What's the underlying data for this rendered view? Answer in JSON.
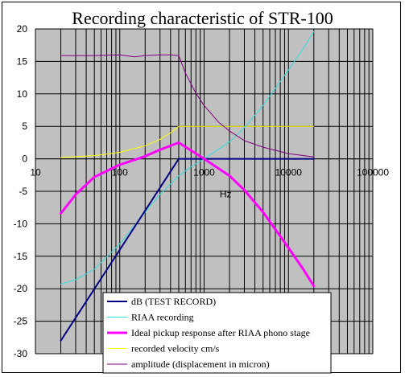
{
  "chart_data": {
    "type": "line",
    "title": "Recording characteristic of STR-100",
    "xlabel": "Hz",
    "ylabel": "",
    "x_scale": "log",
    "xlim": [
      10,
      100000
    ],
    "ylim": [
      -30,
      20
    ],
    "x_ticks": [
      "10",
      "100",
      "1000",
      "10000",
      "100000"
    ],
    "y_ticks": [
      "-30",
      "-25",
      "-20",
      "-15",
      "-10",
      "-5",
      "0",
      "5",
      "10",
      "15",
      "20"
    ],
    "grid": true,
    "plot_background": "#c0c0c0",
    "legend_position": "bottom-center",
    "series": [
      {
        "name": "dB (TEST RECORD)",
        "color": "#000080",
        "width": 2,
        "x": [
          20,
          500,
          1000,
          20000
        ],
        "y": [
          -28,
          0,
          0,
          0
        ]
      },
      {
        "name": "RIAA recording",
        "color": "#33dddd",
        "width": 1,
        "x": [
          20,
          30,
          50,
          100,
          200,
          300,
          500,
          700,
          1000,
          2000,
          3000,
          5000,
          10000,
          15000,
          20000
        ],
        "y": [
          -19.3,
          -18.6,
          -17,
          -13.1,
          -8.2,
          -5.5,
          -2.6,
          -1.2,
          0,
          2.6,
          4.8,
          8.2,
          13.7,
          17,
          19.6
        ]
      },
      {
        "name": "Ideal pickup response after RIAA phono stage",
        "color": "#ff00ff",
        "width": 3,
        "x": [
          20,
          30,
          50,
          100,
          200,
          300,
          500,
          700,
          1000,
          2000,
          3000,
          5000,
          10000,
          15000,
          20000
        ],
        "y": [
          -8.4,
          -5.5,
          -2.8,
          -0.9,
          0.4,
          1.4,
          2.5,
          1.3,
          0,
          -2.6,
          -4.8,
          -8.2,
          -13.7,
          -17,
          -19.6
        ]
      },
      {
        "name": "recorded velocity cm/s",
        "color": "#ffff00",
        "width": 1,
        "x": [
          20,
          50,
          100,
          200,
          300,
          400,
          500,
          1000,
          5000,
          20000
        ],
        "y": [
          0.2,
          0.5,
          1,
          2,
          3,
          4,
          5,
          5,
          5,
          5
        ]
      },
      {
        "name": "amplitude (displacement in micron)",
        "color": "#800080",
        "width": 1,
        "x": [
          20,
          50,
          100,
          150,
          200,
          300,
          400,
          500,
          600,
          800,
          1000,
          1500,
          2000,
          3000,
          5000,
          10000,
          20000
        ],
        "y": [
          15.9,
          15.9,
          16,
          15.7,
          15.9,
          16,
          16,
          15.9,
          13.2,
          10.1,
          8.2,
          5.6,
          4.3,
          2.8,
          1.8,
          0.8,
          0.3
        ]
      }
    ]
  }
}
